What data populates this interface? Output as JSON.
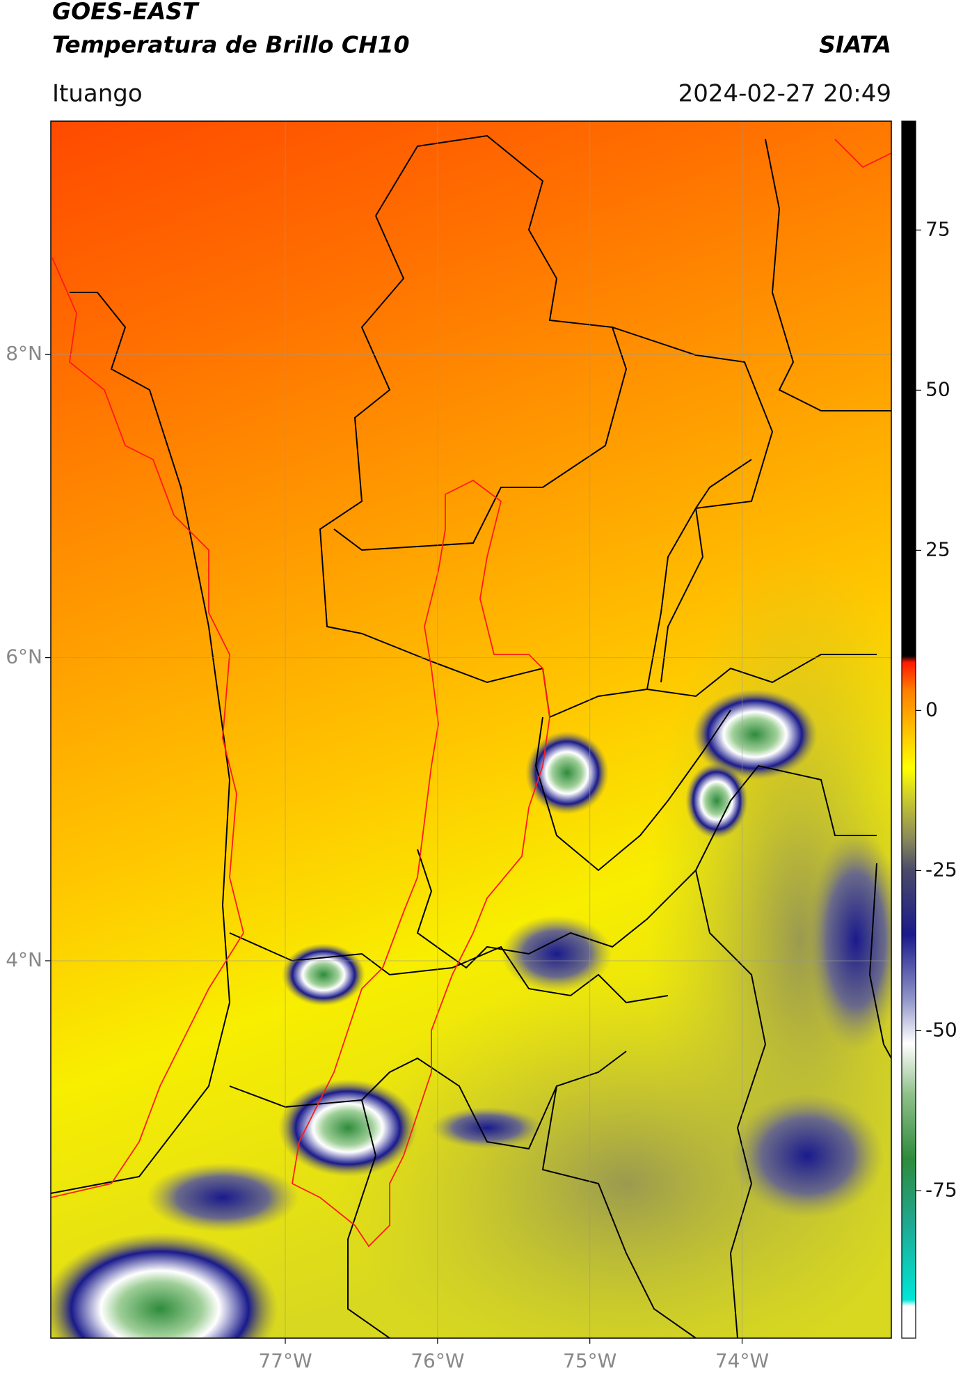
{
  "header": {
    "title_line1": "GOES-EAST",
    "title_line2": "Temperatura de Brillo CH10",
    "organization": "SIATA",
    "location": "Ituango",
    "datetime": "2024-02-27 20:49"
  },
  "map": {
    "xlim": [
      -78.54,
      -73.02
    ],
    "ylim": [
      1.51,
      9.54
    ],
    "xticks": [
      {
        "value": -77,
        "label": "77°W"
      },
      {
        "value": -76,
        "label": "76°W"
      },
      {
        "value": -75,
        "label": "75°W"
      },
      {
        "value": -74,
        "label": "74°W"
      }
    ],
    "yticks": [
      {
        "value": 8,
        "label": "8°N"
      },
      {
        "value": 6,
        "label": "6°N"
      },
      {
        "value": 4,
        "label": "4°N"
      }
    ]
  },
  "colorbar": {
    "lim": [
      -98,
      92
    ],
    "ticks": [
      75,
      50,
      25,
      0,
      -25,
      -50,
      -75
    ],
    "stops": [
      {
        "value": -98,
        "color": "#ffffff"
      },
      {
        "value": -93,
        "color": "#ffffff"
      },
      {
        "value": -92,
        "color": "#00e6d8"
      },
      {
        "value": -80,
        "color": "#20a890"
      },
      {
        "value": -70,
        "color": "#2e8b3c"
      },
      {
        "value": -60,
        "color": "#8fc08a"
      },
      {
        "value": -52,
        "color": "#ffffff"
      },
      {
        "value": -45,
        "color": "#8f94c8"
      },
      {
        "value": -35,
        "color": "#1a1a8c"
      },
      {
        "value": -25,
        "color": "#4a4a6a"
      },
      {
        "value": -20,
        "color": "#8a8a5a"
      },
      {
        "value": -14,
        "color": "#c8c830"
      },
      {
        "value": -9,
        "color": "#ffff00"
      },
      {
        "value": -3,
        "color": "#ffc000"
      },
      {
        "value": 3,
        "color": "#ff8000"
      },
      {
        "value": 7.5,
        "color": "#ff1a00"
      },
      {
        "value": 8.5,
        "color": "#000000"
      },
      {
        "value": 92,
        "color": "#000000"
      }
    ]
  }
}
